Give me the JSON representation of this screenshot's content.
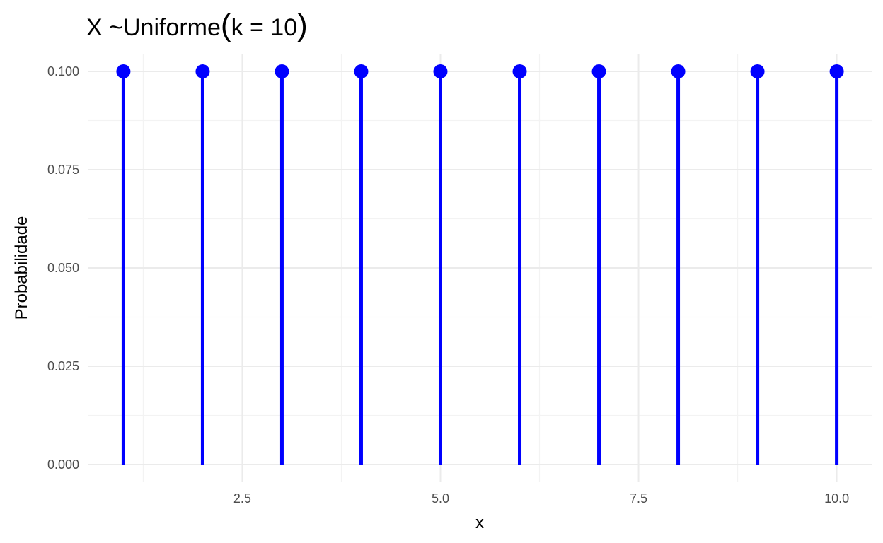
{
  "chart_data": {
    "type": "scatter",
    "title": {
      "prefix": "X ~Uniforme",
      "open_paren": "(",
      "inner": "k = 10",
      "close_paren": ")"
    },
    "xlabel": "x",
    "ylabel": "Probabilidade",
    "xlim": [
      0.55,
      10.45
    ],
    "ylim": [
      -0.0045,
      0.1045
    ],
    "x_major_ticks": [
      2.5,
      5.0,
      7.5,
      10.0
    ],
    "x_tick_labels": [
      "2.5",
      "5.0",
      "7.5",
      "10.0"
    ],
    "x_minor_ticks": [
      1.25,
      3.75,
      6.25,
      8.75
    ],
    "y_major_ticks": [
      0.0,
      0.025,
      0.05,
      0.075,
      0.1
    ],
    "y_tick_labels": [
      "0.000",
      "0.025",
      "0.050",
      "0.075",
      "0.100"
    ],
    "y_minor_ticks": [
      0.0125,
      0.0375,
      0.0625,
      0.0875
    ],
    "grid": true,
    "mark_style": "lollipop",
    "series": [
      {
        "color": "#0000ff",
        "x": [
          1,
          2,
          3,
          4,
          5,
          6,
          7,
          8,
          9,
          10
        ],
        "y": [
          0.1,
          0.1,
          0.1,
          0.1,
          0.1,
          0.1,
          0.1,
          0.1,
          0.1,
          0.1
        ]
      }
    ]
  }
}
